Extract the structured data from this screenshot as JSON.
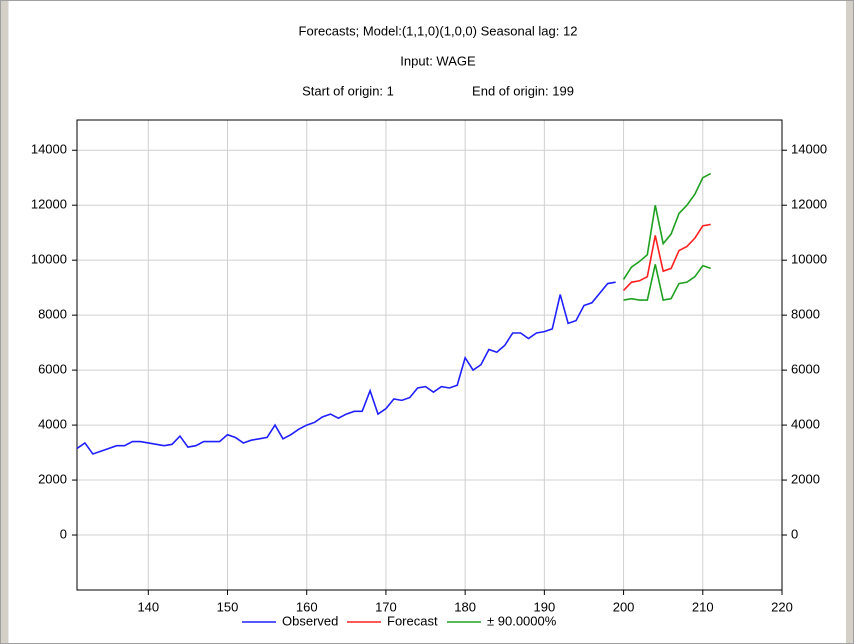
{
  "chart_data": {
    "type": "line",
    "title": "Forecasts; Model:(1,1,0)(1,0,0) Seasonal lag: 12",
    "subtitle": "Input: WAGE",
    "annotations": [
      "Start of origin: 1",
      "End of origin: 199"
    ],
    "xlim": [
      131,
      220
    ],
    "xticks": [
      140,
      150,
      160,
      170,
      180,
      190,
      200,
      210,
      220
    ],
    "ylim": [
      -2000,
      15100
    ],
    "yticks": [
      0,
      2000,
      4000,
      6000,
      8000,
      10000,
      12000,
      14000
    ],
    "y2lim": [
      -2000,
      15100
    ],
    "y2ticks": [
      0,
      2000,
      4000,
      6000,
      8000,
      10000,
      12000,
      14000
    ],
    "grid": true,
    "series": [
      {
        "name": "Observed",
        "color": "#2020ff",
        "x": [
          131,
          132,
          133,
          134,
          135,
          136,
          137,
          138,
          139,
          140,
          141,
          142,
          143,
          144,
          145,
          146,
          147,
          148,
          149,
          150,
          151,
          152,
          153,
          154,
          155,
          156,
          157,
          158,
          159,
          160,
          161,
          162,
          163,
          164,
          165,
          166,
          167,
          168,
          169,
          170,
          171,
          172,
          173,
          174,
          175,
          176,
          177,
          178,
          179,
          180,
          181,
          182,
          183,
          184,
          185,
          186,
          187,
          188,
          189,
          190,
          191,
          192,
          193,
          194,
          195,
          196,
          197,
          198,
          199
        ],
        "values": [
          3150,
          3350,
          2950,
          3050,
          3150,
          3250,
          3250,
          3400,
          3400,
          3350,
          3300,
          3250,
          3300,
          3600,
          3200,
          3250,
          3400,
          3400,
          3400,
          3650,
          3550,
          3350,
          3450,
          3500,
          3550,
          4000,
          3500,
          3650,
          3850,
          4000,
          4100,
          4300,
          4400,
          4250,
          4400,
          4500,
          4500,
          5250,
          4400,
          4600,
          4950,
          4900,
          5000,
          5350,
          5400,
          5200,
          5400,
          5350,
          5450,
          6450,
          6000,
          6200,
          6750,
          6650,
          6900,
          7350,
          7350,
          7150,
          7350,
          7400,
          7500,
          8750,
          7700,
          7800,
          8350,
          8450,
          8800,
          9150,
          9200
        ]
      },
      {
        "name": "Forecast",
        "color": "#ff2020",
        "x": [
          200,
          201,
          202,
          203,
          204,
          205,
          206,
          207,
          208,
          209,
          210,
          211
        ],
        "values": [
          8900,
          9200,
          9250,
          9400,
          10900,
          9600,
          9700,
          10350,
          10500,
          10800,
          11250,
          11300
        ]
      }
    ],
    "band": {
      "name": "± 90.0000%",
      "color": "#20a020",
      "x": [
        200,
        201,
        202,
        203,
        204,
        205,
        206,
        207,
        208,
        209,
        210,
        211
      ],
      "upper": [
        9300,
        9750,
        9950,
        10200,
        12000,
        10600,
        10950,
        11700,
        12000,
        12400,
        13000,
        13150
      ],
      "lower": [
        8550,
        8600,
        8550,
        8550,
        9850,
        8550,
        8600,
        9150,
        9200,
        9400,
        9800,
        9700
      ]
    }
  }
}
